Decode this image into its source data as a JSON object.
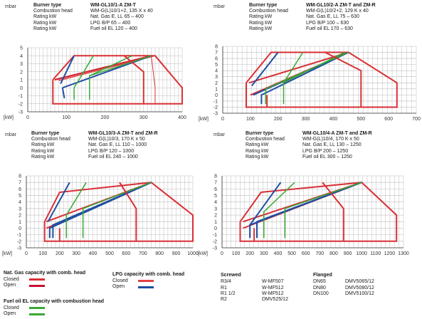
{
  "colors": {
    "grid": "#bdbdbd",
    "axis": "#333333",
    "closed_gas": "#d93036",
    "open_gas": "#c8102e",
    "lpg_closed": "#e0413f",
    "lpg_open": "#1f4ea3",
    "oil": "#3aa935"
  },
  "chart_data": [
    {
      "type": "line",
      "title": "WM-GL10/1-A ZM-T",
      "ylabel": "mbar",
      "xlabel": "kW",
      "xlim": [
        0,
        400
      ],
      "ylim": [
        -3,
        5
      ],
      "xticks": [
        0,
        100,
        200,
        300,
        400
      ],
      "yticks": [
        -3,
        -2,
        -1,
        0,
        1,
        2,
        3,
        4,
        5
      ],
      "info": {
        "title_label": "Burner type",
        "rows": [
          {
            "label": "Combustion head",
            "value": "WM-G(L)10/1+2, 135 X x 40"
          },
          {
            "label": "Rating kW",
            "value": "Nat. Gas E, LL      65 – 400"
          },
          {
            "label": "Rating kW",
            "value": "LPG B/P               65 – 400"
          },
          {
            "label": "Rating kW",
            "value": "Fuel oil EL          120 – 400"
          }
        ]
      },
      "series": [
        {
          "style": "closed_gas",
          "points": [
            [
              65,
              1
            ],
            [
              120,
              4
            ],
            [
              330,
              4
            ],
            [
              400,
              0
            ],
            [
              400,
              -2
            ],
            [
              65,
              -2
            ],
            [
              65,
              1
            ]
          ]
        },
        {
          "style": "open_gas",
          "points": [
            [
              70,
              1
            ],
            [
              320,
              4
            ]
          ]
        },
        {
          "style": "closed_gas_inner",
          "points": [
            [
              75,
              1
            ],
            [
              320,
              4
            ],
            [
              330,
              0
            ],
            [
              330,
              -2
            ],
            [
              75,
              -2
            ]
          ]
        },
        {
          "style": "lpg_closed",
          "points": [
            [
              80,
              0.9
            ],
            [
              330,
              4
            ]
          ]
        },
        {
          "style": "lpg_open",
          "points": [
            [
              85,
              0.5
            ],
            [
              120,
              4
            ]
          ]
        },
        {
          "style": "lpg_open",
          "points": [
            [
              90,
              0
            ],
            [
              95,
              -1.3
            ]
          ]
        },
        {
          "style": "lpg_open",
          "points": [
            [
              90,
              0
            ],
            [
              320,
              4
            ]
          ]
        },
        {
          "style": "oil",
          "points": [
            [
              120,
              -1.5
            ],
            [
              120,
              0
            ],
            [
              170,
              4
            ]
          ]
        },
        {
          "style": "oil",
          "points": [
            [
              160,
              -1.5
            ],
            [
              160,
              1.5
            ],
            [
              270,
              4
            ]
          ]
        },
        {
          "style": "oil",
          "points": [
            [
              160,
              1.5
            ],
            [
              320,
              4
            ]
          ]
        },
        {
          "style": "closed_gas",
          "points": [
            [
              250,
              4
            ],
            [
              300,
              2
            ],
            [
              300,
              -2
            ]
          ]
        }
      ]
    },
    {
      "type": "line",
      "title": "WM-GL10/2-A ZM-T and ZM-R",
      "ylabel": "mbar",
      "xlabel": "kW",
      "xlim": [
        0,
        700
      ],
      "ylim": [
        -3,
        8
      ],
      "xticks": [
        0,
        100,
        200,
        300,
        400,
        500,
        600,
        700
      ],
      "yticks": [
        -3,
        -2,
        -1,
        0,
        1,
        2,
        3,
        4,
        5,
        6,
        7,
        8
      ],
      "info": {
        "title_label": "Burner type",
        "rows": [
          {
            "label": "Combustion head",
            "value": "WM-G(L)10/2+2, 129 K x 40"
          },
          {
            "label": "Rating kW",
            "value": "Nat. Gas E, LL       75 – 630"
          },
          {
            "label": "Rating kW",
            "value": "LPG B/P               100 – 630"
          },
          {
            "label": "Rating kW",
            "value": "Fuel oil EL          170 – 630"
          }
        ]
      },
      "series": [
        {
          "style": "closed_gas",
          "points": [
            [
              85,
              2
            ],
            [
              175,
              7
            ],
            [
              455,
              7
            ],
            [
              630,
              2
            ],
            [
              630,
              -2
            ],
            [
              85,
              -2
            ],
            [
              85,
              2
            ]
          ]
        },
        {
          "style": "closed_gas",
          "points": [
            [
              100,
              0
            ],
            [
              455,
              7
            ]
          ]
        },
        {
          "style": "closed_gas",
          "points": [
            [
              95,
              2
            ],
            [
              455,
              7
            ]
          ]
        },
        {
          "style": "lpg_open",
          "points": [
            [
              105,
              1.5
            ],
            [
              200,
              7
            ]
          ]
        },
        {
          "style": "lpg_open",
          "points": [
            [
              110,
              0
            ],
            [
              455,
              7
            ]
          ]
        },
        {
          "style": "lpg_open",
          "points": [
            [
              140,
              -1.5
            ],
            [
              140,
              0
            ],
            [
              455,
              7
            ]
          ]
        },
        {
          "style": "oil",
          "points": [
            [
              155,
              -1.5
            ],
            [
              155,
              1
            ],
            [
              455,
              7
            ]
          ]
        },
        {
          "style": "oil",
          "points": [
            [
              220,
              -1.5
            ],
            [
              220,
              2
            ],
            [
              440,
              7
            ]
          ]
        },
        {
          "style": "oil",
          "points": [
            [
              220,
              2
            ],
            [
              290,
              7
            ]
          ]
        },
        {
          "style": "closed_gas",
          "points": [
            [
              370,
              7
            ],
            [
              500,
              4
            ],
            [
              500,
              -2
            ]
          ]
        },
        {
          "style": "closed_gas",
          "points": [
            [
              160,
              -2
            ],
            [
              160,
              0
            ]
          ]
        }
      ]
    },
    {
      "type": "line",
      "title": "WM-GL10/3-A ZM-T and ZM-R",
      "ylabel": "mbar",
      "xlabel": "kW",
      "xlim": [
        0,
        1000
      ],
      "ylim": [
        -3,
        8
      ],
      "xticks": [
        0,
        100,
        200,
        300,
        400,
        500,
        600,
        700,
        800,
        900,
        1000
      ],
      "yticks": [
        -3,
        -2,
        -1,
        0,
        1,
        2,
        3,
        4,
        5,
        6,
        7,
        8
      ],
      "info": {
        "title_label": "Burner type",
        "rows": [
          {
            "label": "Combustion head",
            "value": "WM-G(L)10/3, 170 K x 50"
          },
          {
            "label": "Rating kW",
            "value": "Nat. Gas E, LL     110 – 1000"
          },
          {
            "label": "Rating kW",
            "value": "LPG B/P              120 – 1000"
          },
          {
            "label": "Rating kW",
            "value": "Fuel oil EL          240 – 1000"
          }
        ]
      },
      "series": [
        {
          "style": "closed_gas",
          "points": [
            [
              110,
              1
            ],
            [
              200,
              5.5
            ],
            [
              750,
              7
            ],
            [
              1000,
              2
            ],
            [
              1000,
              -2
            ],
            [
              110,
              -2
            ],
            [
              110,
              1
            ]
          ]
        },
        {
          "style": "closed_gas",
          "points": [
            [
              120,
              0
            ],
            [
              750,
              7
            ]
          ]
        },
        {
          "style": "closed_gas",
          "points": [
            [
              120,
              1
            ],
            [
              750,
              7
            ]
          ]
        },
        {
          "style": "lpg_open",
          "points": [
            [
              130,
              1
            ],
            [
              260,
              7
            ]
          ]
        },
        {
          "style": "lpg_open",
          "points": [
            [
              140,
              -1.5
            ],
            [
              140,
              0
            ],
            [
              750,
              7
            ]
          ]
        },
        {
          "style": "lpg_open",
          "points": [
            [
              160,
              -1.5
            ],
            [
              160,
              0.5
            ],
            [
              750,
              7
            ]
          ]
        },
        {
          "style": "oil",
          "points": [
            [
              240,
              -1.5
            ],
            [
              240,
              2
            ],
            [
              360,
              7
            ]
          ]
        },
        {
          "style": "oil",
          "points": [
            [
              340,
              -1.5
            ],
            [
              340,
              3
            ],
            [
              750,
              7
            ]
          ]
        },
        {
          "style": "closed_gas",
          "points": [
            [
              560,
              7
            ],
            [
              660,
              3
            ],
            [
              660,
              -2
            ]
          ]
        },
        {
          "style": "closed_gas",
          "points": [
            [
              200,
              -2
            ],
            [
              200,
              0
            ]
          ]
        }
      ]
    },
    {
      "type": "line",
      "title": "WM-GL10/4-A ZM-T and ZM-R",
      "ylabel": "mbar",
      "xlabel": "kW",
      "xlim": [
        0,
        1300
      ],
      "ylim": [
        -3,
        8
      ],
      "xticks": [
        0,
        100,
        200,
        300,
        400,
        500,
        600,
        700,
        800,
        900,
        1000,
        1100,
        1200,
        1300
      ],
      "yticks": [
        -3,
        -2,
        -1,
        0,
        1,
        2,
        3,
        4,
        5,
        6,
        7,
        8
      ],
      "info": {
        "title_label": "Burner type",
        "rows": [
          {
            "label": "Combustion head",
            "value": "WM-G(L)10/4, 170 K x 50"
          },
          {
            "label": "Rating kW",
            "value": "Nat. Gas E, LL     130 – 1250"
          },
          {
            "label": "Rating kW",
            "value": "LPG B/P              200 – 1250"
          },
          {
            "label": "Rating kW",
            "value": "Fuel oil EL          300 – 1250"
          }
        ]
      },
      "series": [
        {
          "style": "closed_gas",
          "points": [
            [
              130,
              1
            ],
            [
              280,
              5.5
            ],
            [
              1000,
              7
            ],
            [
              1250,
              2
            ],
            [
              1250,
              -2
            ],
            [
              130,
              -2
            ],
            [
              130,
              1
            ]
          ]
        },
        {
          "style": "closed_gas",
          "points": [
            [
              150,
              0
            ],
            [
              1000,
              7
            ]
          ]
        },
        {
          "style": "closed_gas",
          "points": [
            [
              150,
              1
            ],
            [
              1000,
              7
            ]
          ]
        },
        {
          "style": "lpg_open",
          "points": [
            [
              200,
              -1.5
            ],
            [
              200,
              0.5
            ],
            [
              1000,
              7
            ]
          ]
        },
        {
          "style": "lpg_open",
          "points": [
            [
              250,
              -1.5
            ],
            [
              250,
              1
            ],
            [
              1000,
              7
            ]
          ]
        },
        {
          "style": "lpg_open",
          "points": [
            [
              200,
              0.5
            ],
            [
              420,
              7
            ]
          ]
        },
        {
          "style": "oil",
          "points": [
            [
              300,
              -1.5
            ],
            [
              300,
              2.5
            ],
            [
              520,
              7
            ]
          ]
        },
        {
          "style": "oil",
          "points": [
            [
              450,
              -1.5
            ],
            [
              450,
              3
            ],
            [
              1000,
              7
            ]
          ]
        },
        {
          "style": "closed_gas",
          "points": [
            [
              720,
              7
            ],
            [
              870,
              3
            ],
            [
              870,
              -2
            ]
          ]
        },
        {
          "style": "closed_gas",
          "points": [
            [
              230,
              -2
            ],
            [
              230,
              0
            ]
          ]
        }
      ]
    }
  ],
  "legend": {
    "gas_title": "Nat. Gas capacity with comb. head",
    "lpg_title": "LPG capacity with comb. head",
    "oil_title": "Fuel oil EL capacity with combustion head",
    "closed": "Closed",
    "open": "Open"
  },
  "fittings": {
    "screwed_title": "Screwed",
    "screwed": [
      [
        "R3/4",
        "W-MF507"
      ],
      [
        "R1",
        "W-MF512"
      ],
      [
        "R1 1/2",
        "W-MF512"
      ],
      [
        "R2",
        "DMV525/12"
      ]
    ],
    "flanged_title": "Flanged",
    "flanged": [
      [
        "DN65",
        "DMV5065/12"
      ],
      [
        "DN80",
        "DMV5080/12"
      ],
      [
        "DN100",
        "DMV5100/12"
      ]
    ]
  }
}
